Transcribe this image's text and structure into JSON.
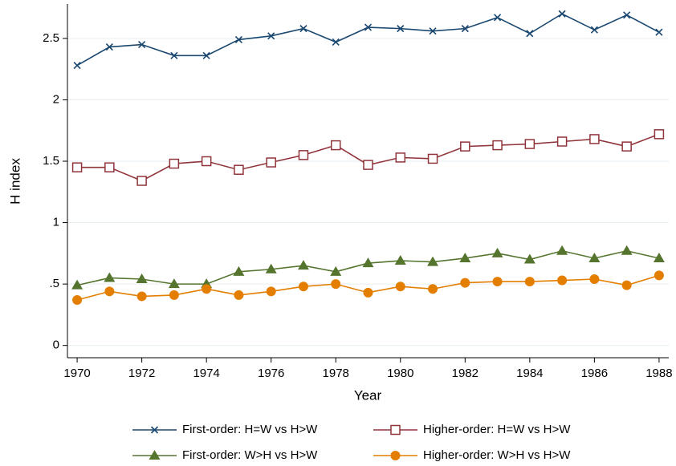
{
  "chart_data": {
    "type": "line",
    "x_label": "Year",
    "y_label": "H index",
    "x": [
      1970,
      1971,
      1972,
      1973,
      1974,
      1975,
      1976,
      1977,
      1978,
      1979,
      1980,
      1981,
      1982,
      1983,
      1984,
      1985,
      1986,
      1987,
      1988
    ],
    "xlim": [
      1969.7,
      1988.3
    ],
    "xticks": [
      1970,
      1972,
      1974,
      1976,
      1978,
      1980,
      1982,
      1984,
      1986,
      1988
    ],
    "ylim": [
      -0.1,
      2.78
    ],
    "yticks": [
      0,
      {
        "value": 0.5,
        "label": ".5"
      },
      1,
      1.5,
      2,
      2.5
    ],
    "grid": true,
    "legend": "bottom",
    "series": [
      {
        "name": "First-order: H=W vs H>W",
        "color": "#1a476f",
        "marker": "x",
        "values": [
          2.28,
          2.43,
          2.45,
          2.36,
          2.36,
          2.49,
          2.52,
          2.58,
          2.47,
          2.59,
          2.58,
          2.56,
          2.58,
          2.67,
          2.54,
          2.7,
          2.57,
          2.69,
          2.55
        ]
      },
      {
        "name": "Higher-order: H=W vs H>W",
        "color": "#90353b",
        "marker": "hollow-square",
        "values": [
          1.45,
          1.45,
          1.34,
          1.48,
          1.5,
          1.43,
          1.49,
          1.55,
          1.63,
          1.47,
          1.53,
          1.52,
          1.62,
          1.63,
          1.64,
          1.66,
          1.68,
          1.62,
          1.72
        ]
      },
      {
        "name": "First-order: W>H vs H>W",
        "color": "#55752f",
        "marker": "triangle",
        "values": [
          0.49,
          0.55,
          0.54,
          0.5,
          0.5,
          0.6,
          0.62,
          0.65,
          0.6,
          0.67,
          0.69,
          0.68,
          0.71,
          0.75,
          0.7,
          0.77,
          0.71,
          0.77,
          0.71
        ]
      },
      {
        "name": "Higher-order: W>H vs H>W",
        "color": "#e37e00",
        "marker": "circle",
        "values": [
          0.37,
          0.44,
          0.4,
          0.41,
          0.46,
          0.41,
          0.44,
          0.48,
          0.5,
          0.43,
          0.48,
          0.46,
          0.51,
          0.52,
          0.52,
          0.53,
          0.54,
          0.49,
          0.57
        ]
      }
    ]
  }
}
